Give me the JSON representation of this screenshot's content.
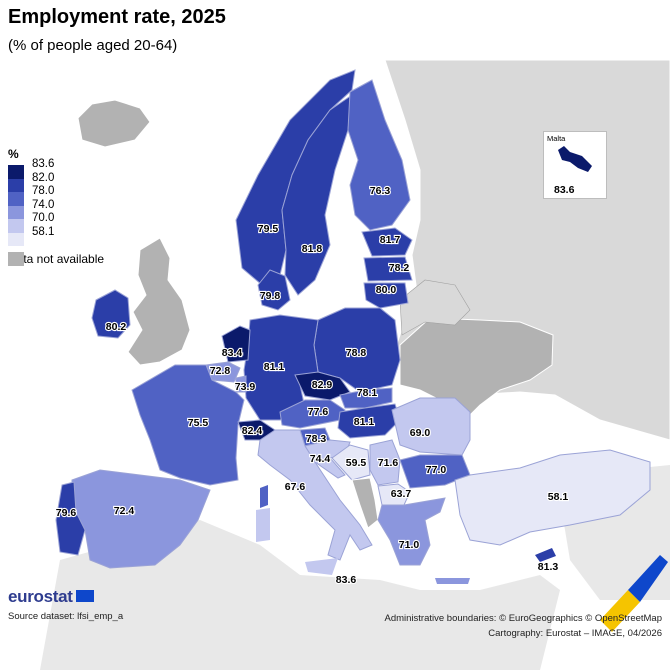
{
  "title": "Employment rate, 2025",
  "subtitle": "(% of people aged 20-64)",
  "legend": {
    "unit": "%",
    "classes": [
      {
        "value": "83.6",
        "color": "#0b1a6b"
      },
      {
        "value": "82.0",
        "color": "#2b3ea8"
      },
      {
        "value": "78.0",
        "color": "#5062c4"
      },
      {
        "value": "74.0",
        "color": "#8b96dd"
      },
      {
        "value": "70.0",
        "color": "#c3c8ef"
      },
      {
        "value": "58.1",
        "color": "#e6e8f7"
      }
    ],
    "na_label": "Data not available",
    "na_color": "#b2b2b2"
  },
  "inset": {
    "name": "Malta",
    "value": "83.6"
  },
  "countries": [
    {
      "name": "Ireland",
      "value": "80.2"
    },
    {
      "name": "Portugal",
      "value": "79.6"
    },
    {
      "name": "Spain",
      "value": "72.4"
    },
    {
      "name": "France",
      "value": "75.5"
    },
    {
      "name": "Belgium",
      "value": "72.8"
    },
    {
      "name": "Netherlands",
      "value": "83.4"
    },
    {
      "name": "Luxembourg",
      "value": "73.9"
    },
    {
      "name": "Germany",
      "value": "81.1"
    },
    {
      "name": "Denmark",
      "value": "79.8"
    },
    {
      "name": "Norway",
      "value": "79.5"
    },
    {
      "name": "Sweden",
      "value": "81.8"
    },
    {
      "name": "Finland",
      "value": "76.3"
    },
    {
      "name": "Estonia",
      "value": "81.7"
    },
    {
      "name": "Latvia",
      "value": "78.2"
    },
    {
      "name": "Lithuania",
      "value": "80.0"
    },
    {
      "name": "Poland",
      "value": "78.8"
    },
    {
      "name": "Czechia",
      "value": "82.9"
    },
    {
      "name": "Slovakia",
      "value": "78.1"
    },
    {
      "name": "Austria",
      "value": "77.6"
    },
    {
      "name": "Hungary",
      "value": "81.1"
    },
    {
      "name": "Switzerland",
      "value": "82.4"
    },
    {
      "name": "Slovenia",
      "value": "78.3"
    },
    {
      "name": "Croatia",
      "value": "74.4"
    },
    {
      "name": "Bosnia and Herzegovina",
      "value": "59.5"
    },
    {
      "name": "Serbia",
      "value": "71.6"
    },
    {
      "name": "Romania",
      "value": "69.0"
    },
    {
      "name": "Bulgaria",
      "value": "77.0"
    },
    {
      "name": "North Macedonia",
      "value": "63.7"
    },
    {
      "name": "Italy",
      "value": "67.6"
    },
    {
      "name": "Greece",
      "value": "71.0"
    },
    {
      "name": "Türkiye",
      "value": "58.1"
    },
    {
      "name": "Cyprus",
      "value": "81.3"
    },
    {
      "name": "Malta",
      "value": "83.6"
    }
  ],
  "logo": "eurostat",
  "source": "Source dataset: lfsi_emp_a",
  "credits": {
    "line1": "Administrative boundaries: © EuroGeographics © OpenStreetMap",
    "line2": "Cartography: Eurostat – IMAGE, 04/2026"
  }
}
